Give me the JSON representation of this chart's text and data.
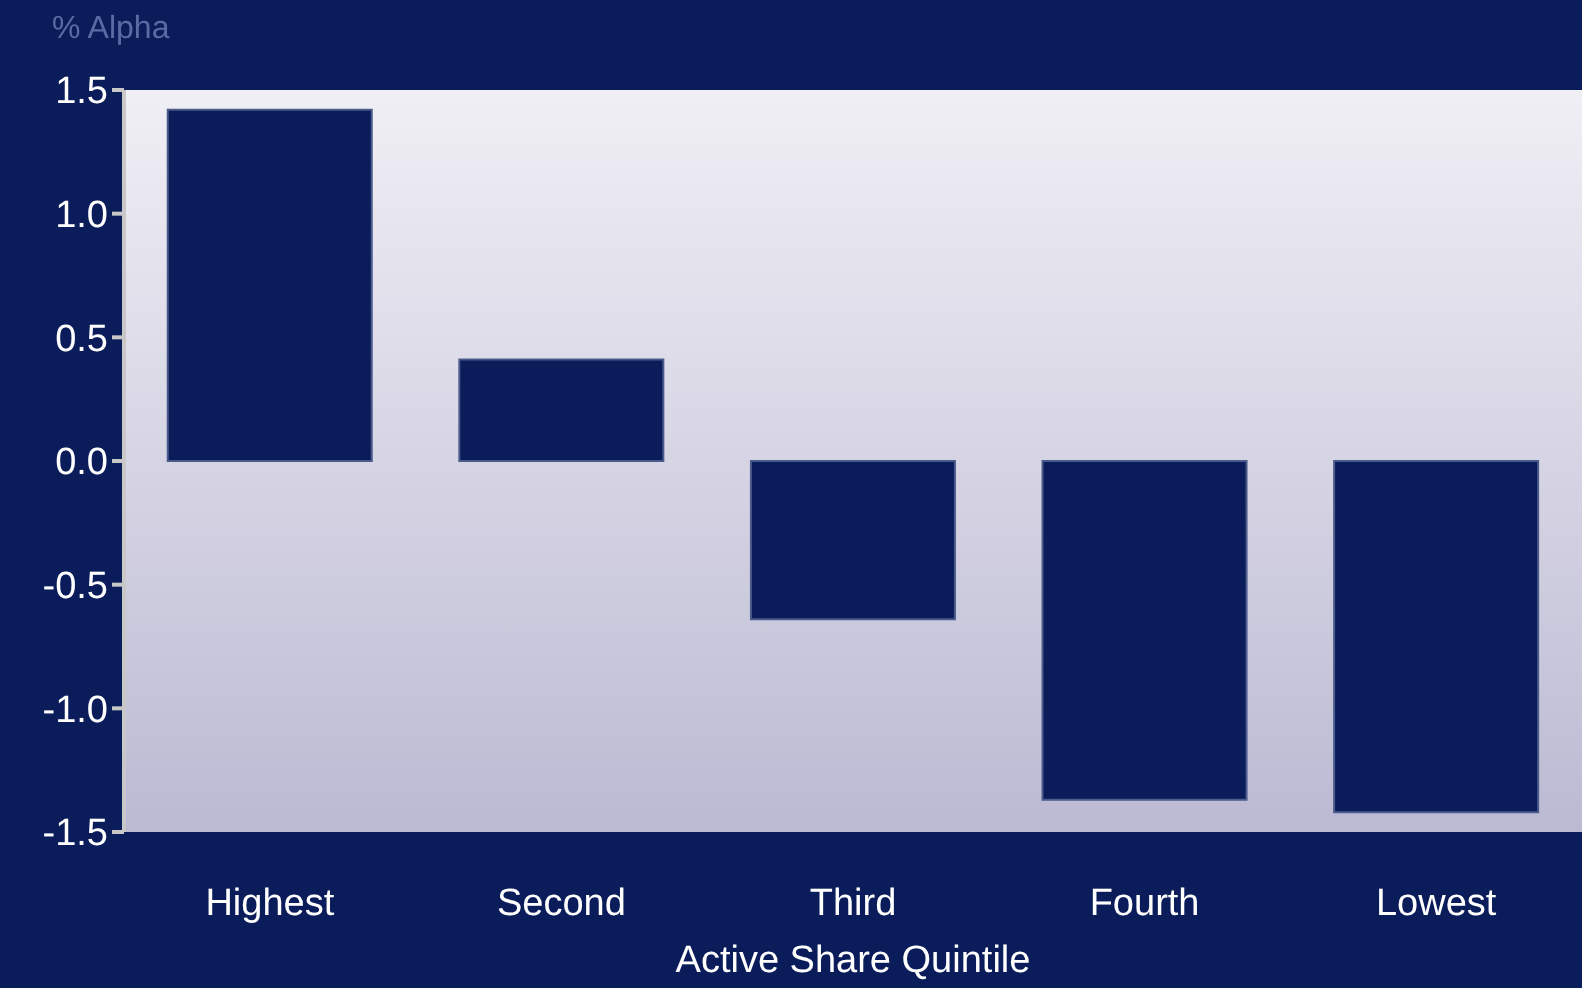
{
  "chart_data": {
    "type": "bar",
    "ylabel": "% Alpha",
    "xlabel": "Active Share Quintile",
    "categories": [
      "Highest",
      "Second",
      "Third",
      "Fourth",
      "Lowest"
    ],
    "values": [
      1.42,
      0.41,
      -0.64,
      -1.37,
      -1.42
    ],
    "color": "#0a1c5a",
    "ylim": [
      -1.5,
      1.5
    ],
    "yticks": [
      -1.5,
      {
        "value": -1.0,
        "label": "-1.0"
      },
      -0.5,
      {
        "value": 0,
        "label": "0.0"
      },
      0.5,
      {
        "value": 1.0,
        "label": "1.0"
      },
      1.5
    ]
  }
}
